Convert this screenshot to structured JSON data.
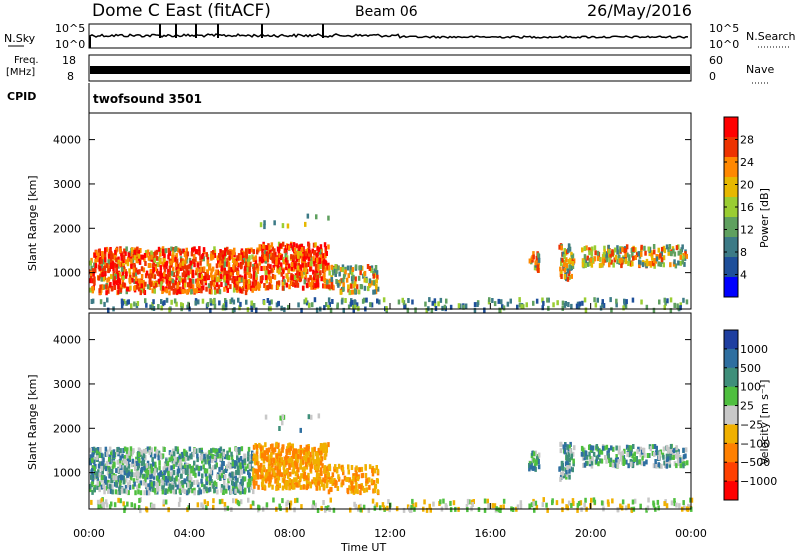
{
  "header": {
    "title": "Dome C East (fitACF)",
    "beam": "Beam 06",
    "date": "26/May/2016"
  },
  "strips": {
    "nsky_label": "N.Sky",
    "nsearch_label": "N.Search",
    "nsky_ticks": [
      "10^5",
      "10^0"
    ],
    "nsearch_ticks": [
      "10^5",
      "10^0"
    ],
    "freq_label": "Freq.",
    "freq_unit": "[MHz]",
    "freq_ticks": [
      "18",
      "8"
    ],
    "nave_label": "Nave",
    "nave_ticks": [
      "60",
      "0"
    ],
    "cpid_label": "CPID",
    "cpid_value": "twofsound 3501"
  },
  "chart_data": [
    {
      "type": "heatmap",
      "name": "power",
      "ylabel": "Slant Range [km]",
      "xlabel": "Time UT",
      "xlim_hours": [
        0,
        24
      ],
      "ylim": [
        180,
        4600
      ],
      "yticks": [
        "4000",
        "3000",
        "2000",
        "1000"
      ],
      "xticks": [
        "00:00",
        "04:00",
        "08:00",
        "12:00",
        "16:00",
        "20:00",
        "00:00"
      ],
      "colorbar": {
        "label": "Power [dB]",
        "ticks": [
          "28",
          "24",
          "20",
          "16",
          "12",
          "8",
          "4"
        ],
        "colors": [
          "#ff0000",
          "#ee3300",
          "#ff8800",
          "#e6b800",
          "#9acd32",
          "#5fa05f",
          "#3c7a86",
          "#1e4f9a",
          "#0000ff"
        ]
      }
    },
    {
      "type": "heatmap",
      "name": "velocity",
      "ylabel": "Slant Range [km]",
      "xlabel": "Time UT",
      "xlim_hours": [
        0,
        24
      ],
      "ylim": [
        180,
        4600
      ],
      "yticks": [
        "4000",
        "3000",
        "2000",
        "1000"
      ],
      "xticks": [
        "00:00",
        "04:00",
        "08:00",
        "12:00",
        "16:00",
        "20:00",
        "00:00"
      ],
      "colorbar": {
        "label": "Velocity [m s⁻¹]",
        "ticks": [
          "1000",
          "500",
          "100",
          "25",
          "−25",
          "−100",
          "−500",
          "−1000"
        ],
        "colors": [
          "#1f3fa0",
          "#2f6fa0",
          "#3f8f7a",
          "#4fbf3f",
          "#c8c8c8",
          "#f0b000",
          "#ff8000",
          "#ff4000",
          "#ff0000"
        ]
      }
    }
  ],
  "x_axis": {
    "ticks": [
      "00:00",
      "04:00",
      "08:00",
      "12:00",
      "16:00",
      "20:00",
      "00:00"
    ],
    "label": "Time UT"
  }
}
